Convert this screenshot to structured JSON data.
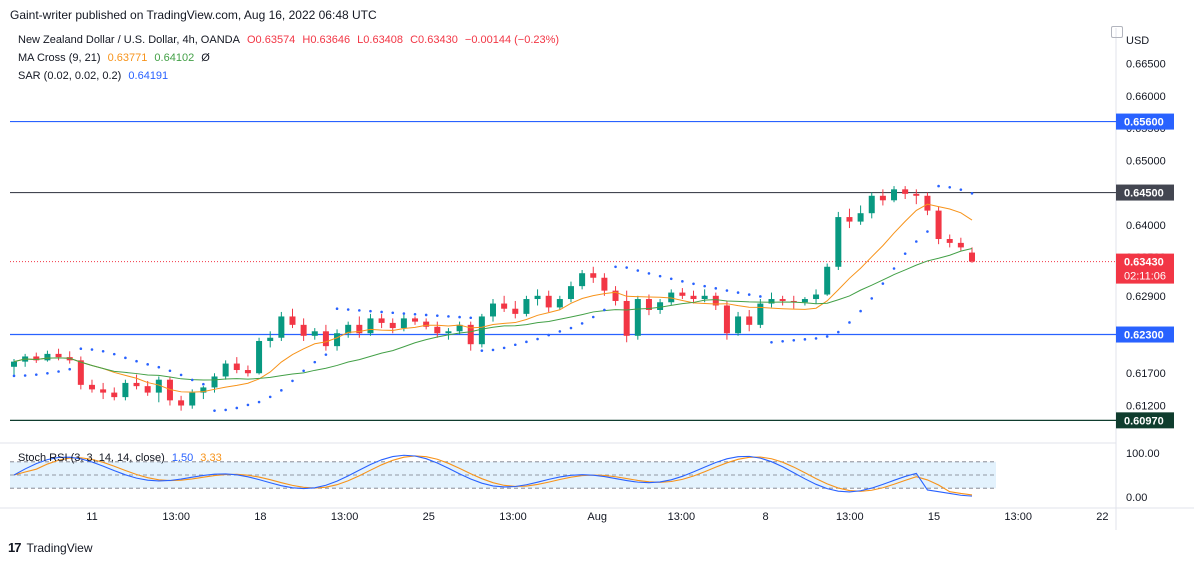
{
  "header": {
    "published_text": "Gaint-writer published on TradingView.com, Aug 16, 2022 06:48 UTC"
  },
  "legend": {
    "symbol": "New Zealand Dollar / U.S. Dollar, 4h, OANDA",
    "open": "O0.63574",
    "high": "H0.63646",
    "low": "L0.63408",
    "close": "C0.63430",
    "change": "−0.00144 (−0.23%)",
    "ma_label": "MA Cross (9, 21)",
    "ma_fast": "0.63771",
    "ma_slow": "0.64102",
    "ma_extra": "Ø",
    "sar_label": "SAR (0.02, 0.02, 0.2)",
    "sar_value": "0.64191"
  },
  "footer": {
    "brand": "TradingView"
  },
  "chart_data": [
    {
      "type": "candlestick",
      "title": "New Zealand Dollar / U.S. Dollar, 4h, OANDA",
      "currency_label": "USD",
      "ylim": [
        0.6065,
        0.6705
      ],
      "y_ticks": [
        "0.66500",
        "0.66000",
        "0.65500",
        "0.65000",
        "0.64500",
        "0.64000",
        "0.63500",
        "0.62900",
        "0.62300",
        "0.61700",
        "0.61200",
        "0.60970"
      ],
      "x_ticks": [
        "11",
        "13:00",
        "18",
        "13:00",
        "25",
        "13:00",
        "Aug",
        "13:00",
        "8",
        "13:00",
        "15",
        "13:00",
        "22"
      ],
      "horizontal_levels": [
        {
          "value": 0.656,
          "label": "0.65600",
          "color": "#2962ff"
        },
        {
          "value": 0.645,
          "label": "0.64500",
          "color": "#434651"
        },
        {
          "value": 0.623,
          "label": "0.62300",
          "color": "#2962ff"
        },
        {
          "value": 0.6097,
          "label": "0.60970",
          "color": "#0f3d2e"
        }
      ],
      "last_price": {
        "value": 0.6343,
        "label": "0.63430",
        "countdown": "02:11:06",
        "color": "#f23645"
      },
      "colors": {
        "up": "#089981",
        "down": "#f23645",
        "ma_fast": "#f7931a",
        "ma_slow": "#43a047",
        "sar": "#2962ff"
      },
      "candles": [
        [
          0.618,
          0.6192,
          0.6166,
          0.6188
        ],
        [
          0.6188,
          0.62,
          0.618,
          0.6196
        ],
        [
          0.6196,
          0.6202,
          0.6186,
          0.619
        ],
        [
          0.619,
          0.6205,
          0.6188,
          0.62
        ],
        [
          0.62,
          0.6208,
          0.619,
          0.6195
        ],
        [
          0.6195,
          0.6204,
          0.6185,
          0.619
        ],
        [
          0.619,
          0.6196,
          0.6145,
          0.6152
        ],
        [
          0.6152,
          0.616,
          0.614,
          0.6145
        ],
        [
          0.6145,
          0.6155,
          0.613,
          0.614
        ],
        [
          0.614,
          0.6148,
          0.6128,
          0.6133
        ],
        [
          0.6133,
          0.616,
          0.6128,
          0.6155
        ],
        [
          0.6155,
          0.6168,
          0.6145,
          0.615
        ],
        [
          0.615,
          0.6158,
          0.6135,
          0.614
        ],
        [
          0.614,
          0.6165,
          0.6125,
          0.616
        ],
        [
          0.616,
          0.6165,
          0.612,
          0.6128
        ],
        [
          0.6128,
          0.6135,
          0.6112,
          0.612
        ],
        [
          0.612,
          0.6145,
          0.6115,
          0.614
        ],
        [
          0.614,
          0.615,
          0.613,
          0.6148
        ],
        [
          0.6148,
          0.617,
          0.614,
          0.6165
        ],
        [
          0.6165,
          0.619,
          0.616,
          0.6185
        ],
        [
          0.6185,
          0.6195,
          0.617,
          0.6175
        ],
        [
          0.6175,
          0.6182,
          0.6165,
          0.617
        ],
        [
          0.617,
          0.6225,
          0.6168,
          0.622
        ],
        [
          0.622,
          0.6235,
          0.621,
          0.6225
        ],
        [
          0.6225,
          0.6265,
          0.622,
          0.6258
        ],
        [
          0.6258,
          0.627,
          0.624,
          0.6245
        ],
        [
          0.6245,
          0.6255,
          0.622,
          0.6228
        ],
        [
          0.6228,
          0.624,
          0.6222,
          0.6235
        ],
        [
          0.6235,
          0.6245,
          0.6205,
          0.6212
        ],
        [
          0.6212,
          0.6238,
          0.6205,
          0.6232
        ],
        [
          0.6232,
          0.625,
          0.6225,
          0.6245
        ],
        [
          0.6245,
          0.6258,
          0.6225,
          0.6232
        ],
        [
          0.6232,
          0.6262,
          0.6228,
          0.6255
        ],
        [
          0.6255,
          0.6262,
          0.624,
          0.6248
        ],
        [
          0.6248,
          0.6255,
          0.6232,
          0.624
        ],
        [
          0.624,
          0.6262,
          0.6235,
          0.6255
        ],
        [
          0.6255,
          0.6258,
          0.6245,
          0.625
        ],
        [
          0.625,
          0.6255,
          0.6238,
          0.6242
        ],
        [
          0.6242,
          0.625,
          0.6225,
          0.6232
        ],
        [
          0.6232,
          0.624,
          0.6222,
          0.6235
        ],
        [
          0.6235,
          0.625,
          0.623,
          0.6245
        ],
        [
          0.6245,
          0.625,
          0.6205,
          0.6215
        ],
        [
          0.6215,
          0.6262,
          0.621,
          0.6258
        ],
        [
          0.6258,
          0.6285,
          0.625,
          0.6278
        ],
        [
          0.6278,
          0.629,
          0.6265,
          0.627
        ],
        [
          0.627,
          0.6282,
          0.6255,
          0.6262
        ],
        [
          0.6262,
          0.629,
          0.6258,
          0.6285
        ],
        [
          0.6285,
          0.63,
          0.6275,
          0.629
        ],
        [
          0.629,
          0.6298,
          0.6265,
          0.6272
        ],
        [
          0.6272,
          0.629,
          0.6268,
          0.6285
        ],
        [
          0.6285,
          0.6312,
          0.628,
          0.6305
        ],
        [
          0.6305,
          0.633,
          0.63,
          0.6325
        ],
        [
          0.6325,
          0.6335,
          0.631,
          0.6318
        ],
        [
          0.6318,
          0.6325,
          0.629,
          0.6298
        ],
        [
          0.6298,
          0.6305,
          0.6275,
          0.6282
        ],
        [
          0.6282,
          0.6298,
          0.6218,
          0.6228
        ],
        [
          0.6228,
          0.629,
          0.6222,
          0.6285
        ],
        [
          0.6285,
          0.6292,
          0.626,
          0.6268
        ],
        [
          0.6268,
          0.6285,
          0.6262,
          0.628
        ],
        [
          0.628,
          0.63,
          0.6275,
          0.6295
        ],
        [
          0.6295,
          0.6302,
          0.6285,
          0.629
        ],
        [
          0.629,
          0.6298,
          0.6278,
          0.6285
        ],
        [
          0.6285,
          0.63,
          0.628,
          0.629
        ],
        [
          0.629,
          0.6295,
          0.6268,
          0.6275
        ],
        [
          0.6275,
          0.6282,
          0.6222,
          0.6232
        ],
        [
          0.6232,
          0.6265,
          0.6228,
          0.6258
        ],
        [
          0.6258,
          0.6268,
          0.6235,
          0.6245
        ],
        [
          0.6245,
          0.6285,
          0.624,
          0.6278
        ],
        [
          0.6278,
          0.6295,
          0.6272,
          0.6285
        ],
        [
          0.6285,
          0.629,
          0.6275,
          0.6282
        ],
        [
          0.6282,
          0.629,
          0.627,
          0.628
        ],
        [
          0.628,
          0.6288,
          0.6275,
          0.6285
        ],
        [
          0.6285,
          0.63,
          0.6278,
          0.6292
        ],
        [
          0.6292,
          0.634,
          0.629,
          0.6335
        ],
        [
          0.6335,
          0.642,
          0.633,
          0.6412
        ],
        [
          0.6412,
          0.6425,
          0.6395,
          0.6405
        ],
        [
          0.6405,
          0.643,
          0.64,
          0.6418
        ],
        [
          0.6418,
          0.645,
          0.641,
          0.6445
        ],
        [
          0.6445,
          0.6455,
          0.643,
          0.6438
        ],
        [
          0.6438,
          0.646,
          0.6435,
          0.6455
        ],
        [
          0.6455,
          0.646,
          0.644,
          0.6448
        ],
        [
          0.6448,
          0.6455,
          0.6432,
          0.6445
        ],
        [
          0.6445,
          0.645,
          0.6415,
          0.6422
        ],
        [
          0.6422,
          0.6428,
          0.637,
          0.6378
        ],
        [
          0.6378,
          0.6385,
          0.6365,
          0.6372
        ],
        [
          0.6372,
          0.638,
          0.636,
          0.6365
        ],
        [
          0.6357,
          0.6365,
          0.6341,
          0.6343
        ]
      ]
    },
    {
      "type": "line",
      "title": "Stoch RSI (3, 3, 14, 14, close)",
      "k_value": "1.50",
      "d_value": "3.33",
      "ylim": [
        0,
        100
      ],
      "y_ticks": [
        "100.00",
        "0.00"
      ],
      "bands": [
        80,
        20
      ],
      "colors": {
        "k": "#2962ff",
        "d": "#f7931a",
        "band_fill": "#e3f2fd"
      }
    }
  ]
}
